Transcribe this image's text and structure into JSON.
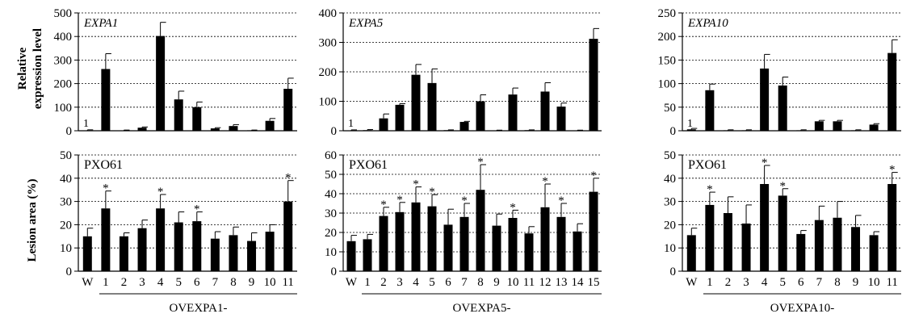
{
  "y_labels": {
    "expression_line1": "Relative",
    "expression_line2": "expression level",
    "lesion": "Lesion area (%)"
  },
  "chart_data": [
    {
      "type": "bar",
      "panel": "expression",
      "label": "EXPA1",
      "categories": [
        "W",
        "1",
        "2",
        "3",
        "4",
        "5",
        "6",
        "7",
        "8",
        "9",
        "10",
        "11"
      ],
      "values": [
        1,
        262,
        1,
        13,
        402,
        133,
        100,
        10,
        20,
        2,
        42,
        178
      ],
      "errors": [
        3,
        65,
        2,
        3,
        58,
        35,
        22,
        3,
        6,
        1,
        10,
        45
      ],
      "ylim": [
        0,
        500
      ],
      "yticks": [
        0,
        100,
        200,
        300,
        400,
        500
      ],
      "annotation": "1",
      "grid": true
    },
    {
      "type": "bar",
      "panel": "expression",
      "label": "EXPA5",
      "categories": [
        "W",
        "1",
        "2",
        "3",
        "4",
        "5",
        "6",
        "7",
        "8",
        "9",
        "10",
        "11",
        "12",
        "13",
        "14",
        "15"
      ],
      "values": [
        1,
        2,
        42,
        88,
        190,
        162,
        2,
        30,
        100,
        1,
        123,
        2,
        133,
        82,
        1,
        312
      ],
      "errors": [
        2,
        2,
        15,
        4,
        35,
        48,
        1,
        2,
        22,
        1,
        22,
        1,
        30,
        12,
        1,
        35
      ],
      "ylim": [
        0,
        400
      ],
      "yticks": [
        0,
        100,
        200,
        300,
        400
      ],
      "annotation": "1",
      "grid": true
    },
    {
      "type": "bar",
      "panel": "expression",
      "label": "EXPA10",
      "categories": [
        "W",
        "1",
        "2",
        "3",
        "4",
        "5",
        "6",
        "7",
        "8",
        "9",
        "10",
        "11"
      ],
      "values": [
        3,
        86,
        1,
        1,
        132,
        96,
        1,
        20,
        20,
        1,
        13,
        165
      ],
      "errors": [
        2,
        13,
        1,
        1,
        30,
        18,
        1,
        2,
        2,
        1,
        2,
        28
      ],
      "ylim": [
        0,
        250
      ],
      "yticks": [
        0,
        50,
        100,
        150,
        200,
        250
      ],
      "annotation": "1",
      "grid": true
    },
    {
      "type": "bar",
      "panel": "lesion",
      "label": "PXO61",
      "categories": [
        "W",
        "1",
        "2",
        "3",
        "4",
        "5",
        "6",
        "7",
        "8",
        "9",
        "10",
        "11"
      ],
      "values": [
        15,
        27,
        15,
        18.5,
        27,
        21,
        21.5,
        14,
        15.5,
        13,
        17,
        30
      ],
      "errors": [
        3.5,
        7.5,
        1.5,
        3.5,
        6,
        4.5,
        4,
        3,
        3.5,
        3.5,
        3,
        9
      ],
      "significant": [
        false,
        true,
        false,
        false,
        true,
        false,
        true,
        false,
        false,
        false,
        false,
        true
      ],
      "star": "*",
      "ylim": [
        0,
        50
      ],
      "yticks": [
        0,
        10,
        20,
        30,
        40,
        50
      ],
      "group_label": "OVEXPA1-",
      "grid": true
    },
    {
      "type": "bar",
      "panel": "lesion",
      "label": "PXO61",
      "categories": [
        "W",
        "1",
        "2",
        "3",
        "4",
        "5",
        "6",
        "7",
        "8",
        "9",
        "10",
        "11",
        "12",
        "13",
        "14",
        "15"
      ],
      "values": [
        15.5,
        16.5,
        28.5,
        30.5,
        35.5,
        33.5,
        24,
        28,
        42,
        23.5,
        27.5,
        19.5,
        33,
        28,
        20.5,
        41
      ],
      "errors": [
        3,
        2.5,
        4.5,
        5,
        8,
        6,
        8,
        7,
        13,
        6,
        4,
        3.5,
        12,
        7,
        4,
        7
      ],
      "significant": [
        false,
        false,
        true,
        true,
        true,
        true,
        false,
        true,
        true,
        false,
        true,
        false,
        true,
        true,
        false,
        true
      ],
      "star": "*",
      "ylim": [
        0,
        60
      ],
      "yticks": [
        0,
        10,
        20,
        30,
        40,
        50,
        60
      ],
      "group_label": "OVEXPA5-",
      "grid": true
    },
    {
      "type": "bar",
      "panel": "lesion",
      "label": "PXO61",
      "categories": [
        "W",
        "1",
        "2",
        "3",
        "4",
        "5",
        "6",
        "7",
        "8",
        "9",
        "10",
        "11"
      ],
      "values": [
        15.5,
        28.5,
        25,
        20.5,
        37.5,
        32.5,
        16,
        22,
        23,
        19,
        15.5,
        37.5
      ],
      "errors": [
        3,
        5.5,
        7,
        8,
        8,
        3,
        1.5,
        6,
        7,
        5,
        1.5,
        5
      ],
      "significant": [
        false,
        true,
        false,
        false,
        true,
        true,
        false,
        false,
        false,
        false,
        false,
        true
      ],
      "star": "*",
      "ylim": [
        0,
        50
      ],
      "yticks": [
        0,
        10,
        20,
        30,
        40,
        50
      ],
      "group_label": "OVEXPA10-",
      "grid": true
    }
  ]
}
